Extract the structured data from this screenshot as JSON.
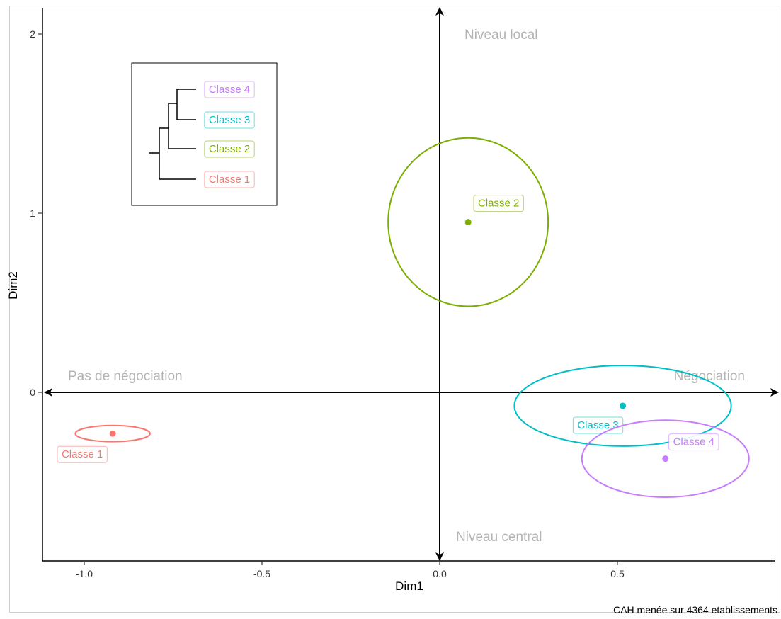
{
  "chart_data": {
    "type": "scatter",
    "xlabel": "Dim1",
    "ylabel": "Dim2",
    "xlim": [
      -1.12,
      0.95
    ],
    "ylim": [
      -0.95,
      2.15
    ],
    "xticks": [
      "-1.0",
      "-0.5",
      "0.0",
      "0.5"
    ],
    "yticks": [
      "0",
      "1",
      "2"
    ],
    "xtick_values": [
      -1.0,
      -0.5,
      0.0,
      0.5
    ],
    "ytick_values": [
      0,
      1,
      2
    ],
    "grid": false,
    "quadrant_labels": {
      "top": "Niveau local",
      "bottom": "Niveau central",
      "left": "Pas de négociation",
      "right": "Négociation"
    },
    "classes": [
      {
        "name": "Classe 1",
        "x": -0.92,
        "y": -0.23,
        "rx": 0.105,
        "ry": 0.045,
        "color": "#f8766d"
      },
      {
        "name": "Classe 2",
        "x": 0.08,
        "y": 0.95,
        "rx": 0.225,
        "ry": 0.47,
        "color": "#7cae00"
      },
      {
        "name": "Classe 3",
        "x": 0.515,
        "y": -0.075,
        "rx": 0.305,
        "ry": 0.225,
        "color": "#00bfc4"
      },
      {
        "name": "Classe 4",
        "x": 0.635,
        "y": -0.37,
        "rx": 0.235,
        "ry": 0.215,
        "color": "#c77cff"
      }
    ],
    "dendrogram_legend": [
      "Classe 4",
      "Classe 3",
      "Classe 2",
      "Classe 1"
    ],
    "caption": "CAH menée sur 4364 etablissements"
  }
}
